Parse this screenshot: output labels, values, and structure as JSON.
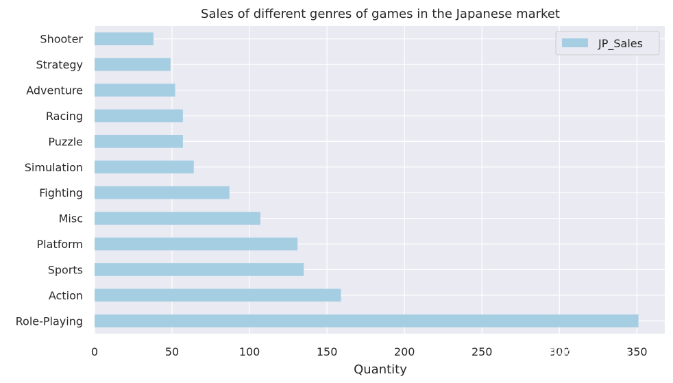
{
  "chart_data": {
    "type": "bar",
    "orientation": "horizontal",
    "title": "Sales of different genres of games in the Japanese market",
    "xlabel": "Quantity",
    "ylabel": "",
    "categories": [
      "Shooter",
      "Strategy",
      "Adventure",
      "Racing",
      "Puzzle",
      "Simulation",
      "Fighting",
      "Misc",
      "Platform",
      "Sports",
      "Action",
      "Role-Playing"
    ],
    "series": [
      {
        "name": "JP_Sales",
        "color": "#a6cee3",
        "values": [
          38,
          49,
          52,
          57,
          57,
          64,
          87,
          107,
          131,
          135,
          159,
          351
        ]
      }
    ],
    "xlim": [
      0,
      368
    ],
    "xticks": [
      0,
      50,
      100,
      150,
      200,
      250,
      300,
      350
    ],
    "grid": true,
    "legend_position": "top-right",
    "background_color": "#eaeaf2",
    "grid_color": "#ffffff"
  },
  "watermark": "知乎 @Aenn"
}
